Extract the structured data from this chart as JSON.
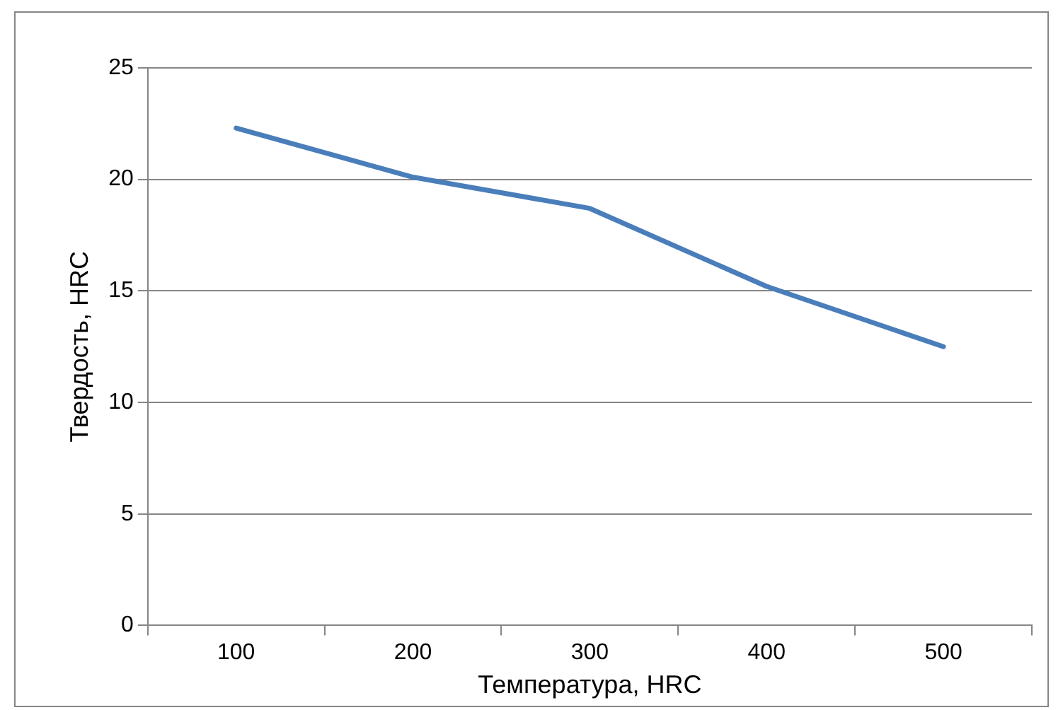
{
  "chart_data": {
    "type": "line",
    "xlabel": "Температура, HRC",
    "ylabel": "Твердость, HRC",
    "categories": [
      "100",
      "200",
      "300",
      "400",
      "500"
    ],
    "series": [
      {
        "color": "#4a7ebb",
        "values": [
          22.3,
          20.1,
          18.7,
          15.2,
          12.5
        ]
      }
    ],
    "ylim": [
      0,
      25
    ],
    "yticks": [
      0,
      5,
      10,
      15,
      20,
      25
    ],
    "grid": "y",
    "legend": false,
    "marker": "none",
    "line_style": "solid"
  }
}
